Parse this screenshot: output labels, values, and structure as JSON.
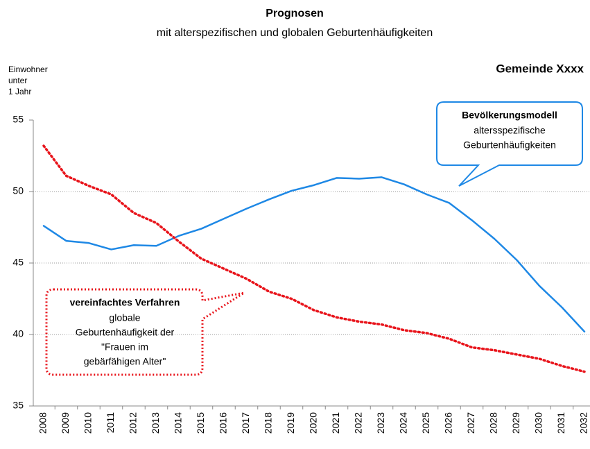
{
  "chart_data": {
    "type": "line",
    "title": "Prognosen",
    "subtitle": "mit alterspezifischen und globalen Geburtenhäufigkeiten",
    "y_label": [
      "Einwohner",
      "unter",
      "1 Jahr"
    ],
    "corner_label": "Gemeinde Xxxx",
    "categories": [
      "2008",
      "2009",
      "2010",
      "2011",
      "2012",
      "2013",
      "2014",
      "2015",
      "2016",
      "2017",
      "2018",
      "2019",
      "2020",
      "2021",
      "2022",
      "2023",
      "2024",
      "2025",
      "2026",
      "2027",
      "2028",
      "2029",
      "2030",
      "2031",
      "2032"
    ],
    "series": [
      {
        "name": "Bevölkerungsmodell",
        "description": [
          "altersspezifische",
          "Geburtenhäufigkeiten"
        ],
        "color": "#1e88e5",
        "dash": false,
        "values": [
          47.6,
          46.55,
          46.4,
          45.95,
          46.25,
          46.2,
          46.9,
          47.4,
          48.1,
          48.8,
          49.45,
          50.05,
          50.45,
          50.95,
          50.9,
          51.0,
          50.5,
          49.8,
          49.2,
          48.0,
          46.7,
          45.2,
          43.4,
          41.9,
          40.2
        ]
      },
      {
        "name": "vereinfachtes Verfahren",
        "description": [
          "globale",
          "Geburtenhäufigkeit der",
          "\"Frauen im",
          "gebärfähigen Alter\""
        ],
        "color": "#e8141b",
        "dash": true,
        "values": [
          53.2,
          51.1,
          50.4,
          49.8,
          48.5,
          47.8,
          46.5,
          45.3,
          44.6,
          43.9,
          43.0,
          42.5,
          41.7,
          41.2,
          40.9,
          40.7,
          40.3,
          40.1,
          39.7,
          39.1,
          38.9,
          38.6,
          38.3,
          37.8,
          37.4
        ]
      }
    ],
    "ylim": [
      35,
      55
    ],
    "yticks": [
      35,
      40,
      45,
      50,
      55
    ],
    "grid": true
  }
}
